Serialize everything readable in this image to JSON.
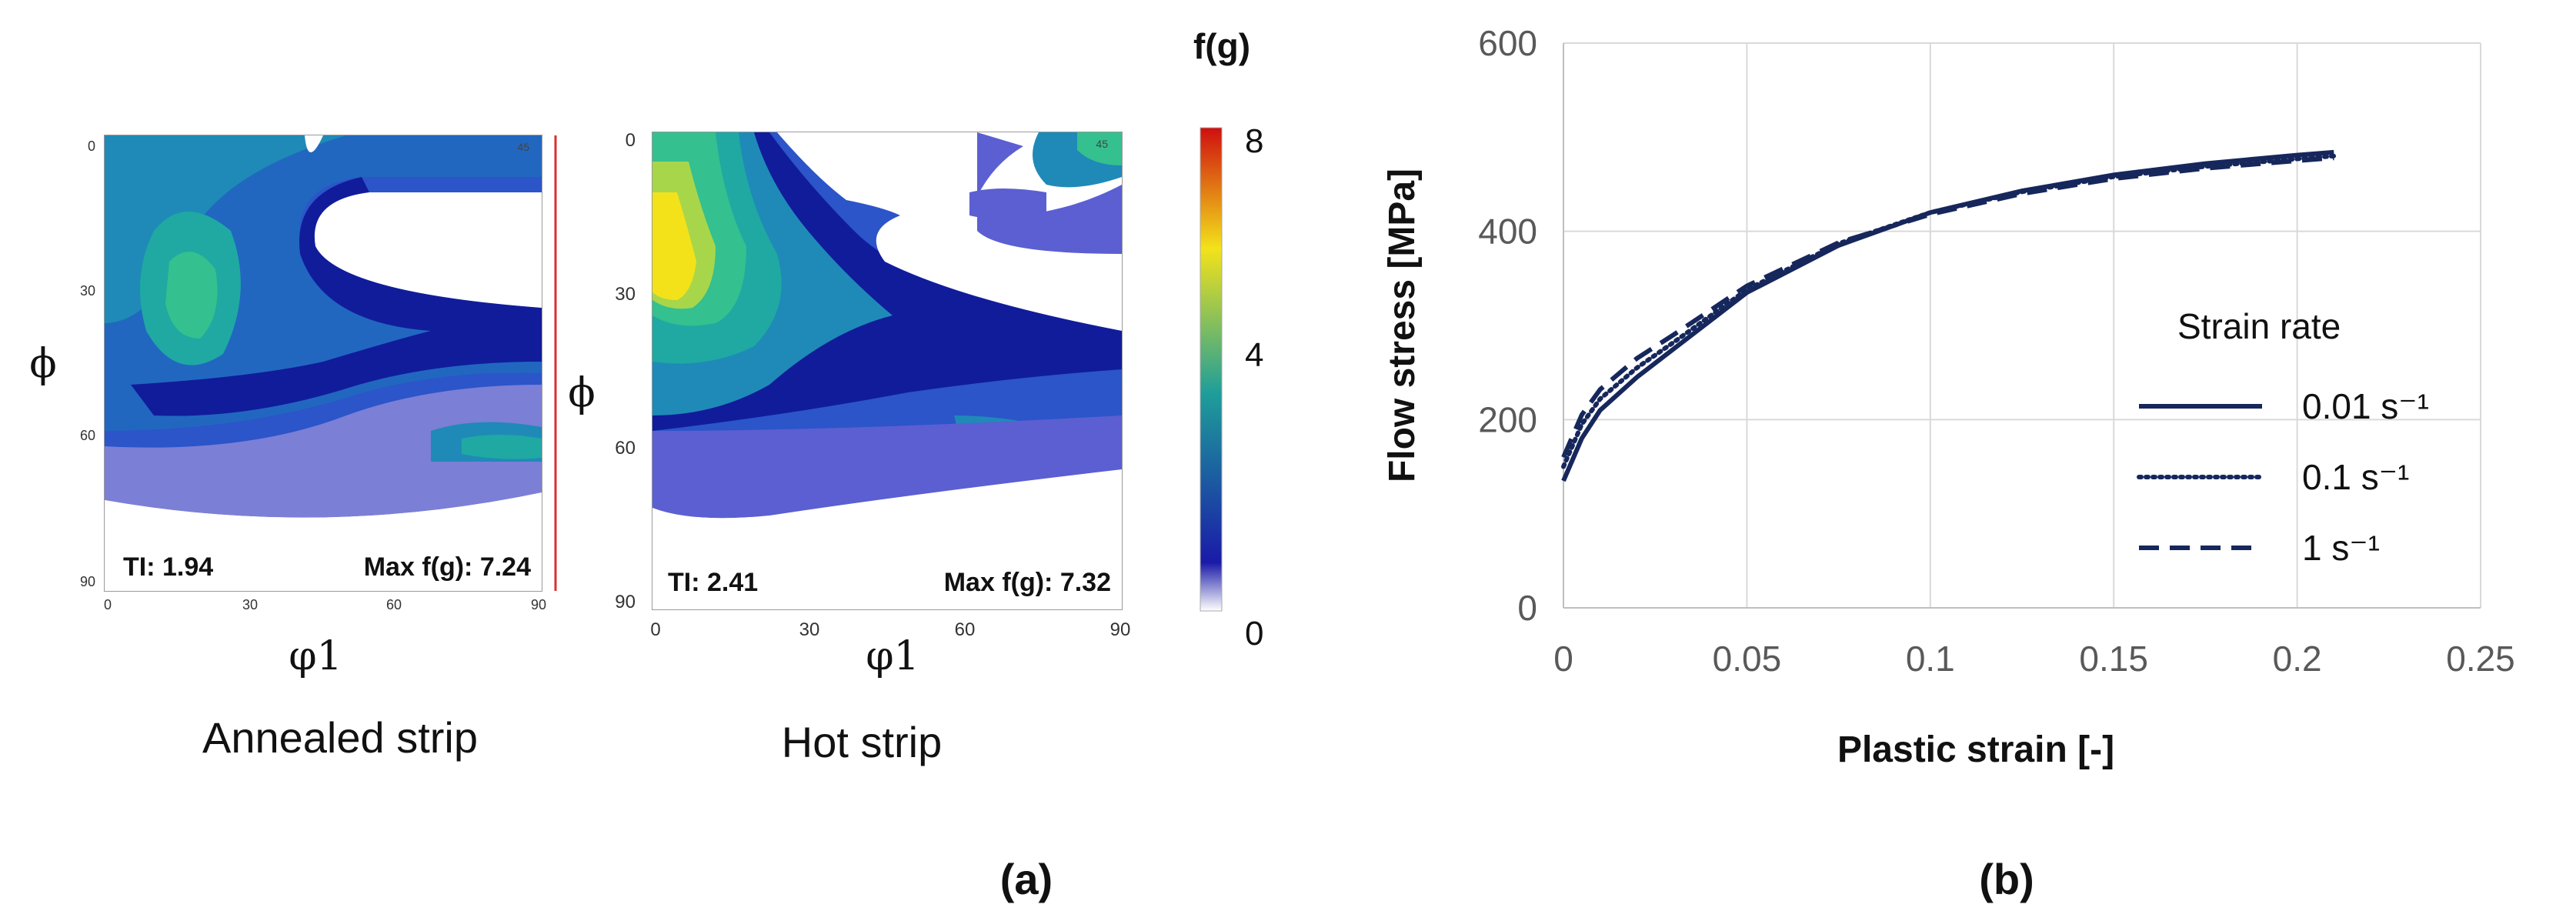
{
  "panel_a": {
    "label": "(a)",
    "colorbar": {
      "title": "f(g)",
      "ticks": [
        0,
        4,
        8
      ],
      "colors": [
        "#ffffff",
        "#1a1aa8",
        "#1e9e9a",
        "#f3e21a",
        "#cf0f0f"
      ]
    },
    "plots": [
      {
        "caption": "Annealed strip",
        "ti": "TI: 1.94",
        "max": "Max f(g): 7.24",
        "xlabel": "φ1",
        "ylabel": "ϕ",
        "xticks": [
          "0",
          "30",
          "60",
          "90"
        ],
        "yticks": [
          "0",
          "30",
          "60",
          "90"
        ],
        "corner_tick": "45"
      },
      {
        "caption": "Hot strip",
        "ti": "TI: 2.41",
        "max": "Max f(g): 7.32",
        "xlabel": "φ1",
        "ylabel": "ϕ",
        "xticks": [
          "0",
          "30",
          "60",
          "90"
        ],
        "yticks": [
          "0",
          "30",
          "60",
          "90"
        ],
        "corner_tick": "45"
      }
    ]
  },
  "panel_b": {
    "label": "(b)"
  },
  "chart_data": {
    "type": "line",
    "xlabel": "Plastic strain [-]",
    "ylabel": "Flow stress [MPa]",
    "xlim": [
      0,
      0.25
    ],
    "ylim": [
      0,
      600
    ],
    "xticks": [
      0,
      0.05,
      0.1,
      0.15,
      0.2,
      0.25
    ],
    "xtick_labels": [
      "0",
      "0.05",
      "0.1",
      "0.15",
      "0.2",
      "0.25"
    ],
    "yticks": [
      0,
      200,
      400,
      600
    ],
    "ytick_labels": [
      "0",
      "200",
      "400",
      "600"
    ],
    "grid": true,
    "legend_title": "Strain rate",
    "legend_position": "center-right",
    "series": [
      {
        "name": "0.01 s⁻¹",
        "style": "solid",
        "color": "#16275c",
        "x": [
          0,
          0.005,
          0.01,
          0.02,
          0.03,
          0.05,
          0.075,
          0.1,
          0.125,
          0.15,
          0.175,
          0.2,
          0.21
        ],
        "y": [
          135,
          180,
          210,
          245,
          275,
          335,
          385,
          420,
          443,
          460,
          472,
          481,
          484
        ]
      },
      {
        "name": "0.1 s⁻¹",
        "style": "dotted",
        "color": "#16275c",
        "x": [
          0,
          0.005,
          0.01,
          0.02,
          0.03,
          0.05,
          0.075,
          0.1,
          0.125,
          0.15,
          0.175,
          0.2,
          0.21
        ],
        "y": [
          150,
          195,
          222,
          255,
          282,
          338,
          387,
          420,
          442,
          458,
          469,
          477,
          480
        ]
      },
      {
        "name": "1 s⁻¹",
        "style": "dashed",
        "color": "#16275c",
        "x": [
          0,
          0.005,
          0.01,
          0.02,
          0.03,
          0.05,
          0.075,
          0.1,
          0.125,
          0.15,
          0.175,
          0.2,
          0.21
        ],
        "y": [
          160,
          205,
          232,
          265,
          290,
          342,
          388,
          418,
          440,
          456,
          467,
          475,
          478
        ]
      }
    ]
  }
}
